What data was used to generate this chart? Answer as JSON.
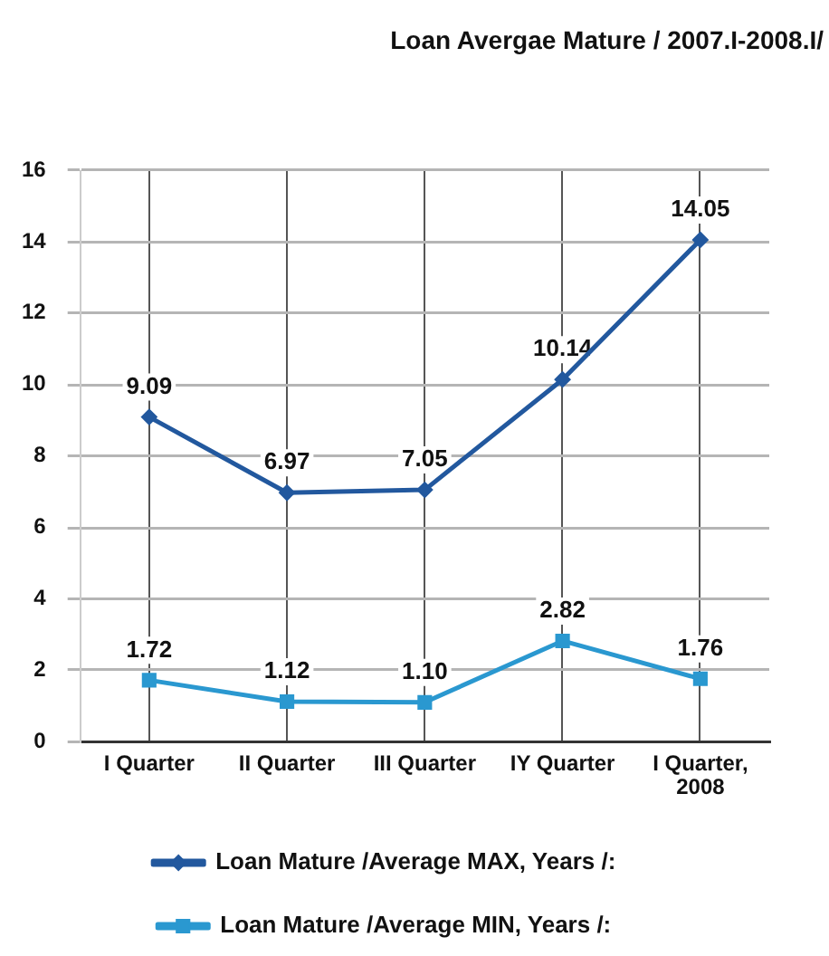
{
  "chart_data": {
    "type": "line",
    "title": "Loan Avergae Mature / 2007.I-2008.I/",
    "categories": [
      "I Quarter",
      "II Quarter",
      "III Quarter",
      "IY Quarter",
      "I Quarter, 2008"
    ],
    "series": [
      {
        "name": "Loan Mature /Average MAX, Years /:",
        "color": "#22589e",
        "marker": "diamond",
        "values": [
          9.09,
          6.97,
          7.05,
          10.14,
          14.05
        ],
        "value_labels": [
          "9.09",
          "6.97",
          "7.05",
          "10.14",
          "14.05"
        ]
      },
      {
        "name": "Loan Mature /Average MIN, Years /:",
        "color": "#2a98d0",
        "marker": "square",
        "values": [
          1.72,
          1.12,
          1.1,
          2.82,
          1.76
        ],
        "value_labels": [
          "1.72",
          "1.12",
          "1.10",
          "2.82",
          "1.76"
        ]
      }
    ],
    "ylim": [
      0,
      16
    ],
    "yticks": [
      0,
      2,
      4,
      6,
      8,
      10,
      12,
      14,
      16
    ],
    "grid": true,
    "legend": "bottom",
    "line_style": "solid"
  }
}
